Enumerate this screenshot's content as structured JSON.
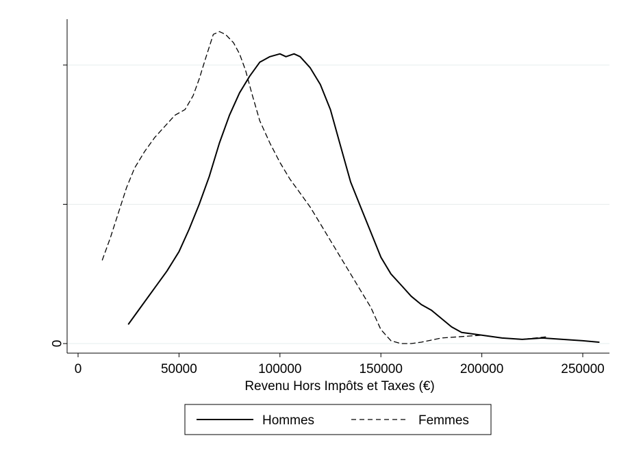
{
  "chart_data": {
    "type": "line",
    "title": "",
    "xlabel": "Revenu Hors Impôts et Taxes (€)",
    "ylabel": "",
    "xlim": [
      -5000,
      265000
    ],
    "ylim": [
      -0.05,
      1.05
    ],
    "x_ticks": [
      0,
      50000,
      100000,
      150000,
      200000,
      250000
    ],
    "x_tick_labels": [
      "0",
      "50000",
      "100000",
      "150000",
      "200000",
      "250000"
    ],
    "y_ticks": [
      0,
      0.5,
      1.0
    ],
    "y_tick_labels": [
      "0",
      "",
      ""
    ],
    "grid": "horizontal",
    "legend_position": "bottom",
    "series": [
      {
        "name": "Hommes",
        "style": "solid",
        "color": "#000000",
        "x": [
          25000,
          32000,
          38000,
          44000,
          50000,
          55000,
          60000,
          65000,
          70000,
          75000,
          80000,
          85000,
          90000,
          95000,
          100000,
          103000,
          107000,
          110000,
          115000,
          120000,
          125000,
          130000,
          135000,
          140000,
          145000,
          150000,
          155000,
          160000,
          165000,
          170000,
          175000,
          180000,
          185000,
          190000,
          195000,
          200000,
          210000,
          220000,
          230000,
          240000,
          250000,
          258000
        ],
        "y": [
          0.07,
          0.14,
          0.2,
          0.26,
          0.33,
          0.41,
          0.5,
          0.6,
          0.72,
          0.82,
          0.9,
          0.96,
          1.01,
          1.03,
          1.04,
          1.03,
          1.04,
          1.03,
          0.99,
          0.93,
          0.84,
          0.71,
          0.58,
          0.49,
          0.4,
          0.31,
          0.25,
          0.21,
          0.17,
          0.14,
          0.12,
          0.09,
          0.06,
          0.04,
          0.035,
          0.03,
          0.02,
          0.015,
          0.02,
          0.015,
          0.01,
          0.005
        ],
        "y_units": "relative"
      },
      {
        "name": "Femmes",
        "style": "dashed",
        "color": "#000000",
        "x": [
          12000,
          16000,
          20000,
          24000,
          28000,
          33000,
          38000,
          43000,
          48000,
          53000,
          57000,
          60000,
          63000,
          67000,
          70000,
          73000,
          77000,
          80000,
          83000,
          86000,
          90000,
          95000,
          100000,
          105000,
          110000,
          115000,
          120000,
          125000,
          130000,
          135000,
          140000,
          145000,
          150000,
          155000,
          160000,
          165000,
          170000,
          180000,
          190000,
          200000,
          210000,
          220000,
          233000
        ],
        "y": [
          0.3,
          0.38,
          0.47,
          0.56,
          0.63,
          0.69,
          0.74,
          0.78,
          0.82,
          0.84,
          0.89,
          0.95,
          1.02,
          1.11,
          1.12,
          1.11,
          1.08,
          1.04,
          0.98,
          0.9,
          0.8,
          0.72,
          0.65,
          0.59,
          0.54,
          0.49,
          0.43,
          0.37,
          0.31,
          0.25,
          0.19,
          0.13,
          0.05,
          0.01,
          0.0,
          0.0,
          0.005,
          0.02,
          0.025,
          0.03,
          0.02,
          0.015,
          0.025
        ],
        "y_units": "relative"
      }
    ]
  },
  "legend": {
    "items": [
      "Hommes",
      "Femmes"
    ]
  }
}
